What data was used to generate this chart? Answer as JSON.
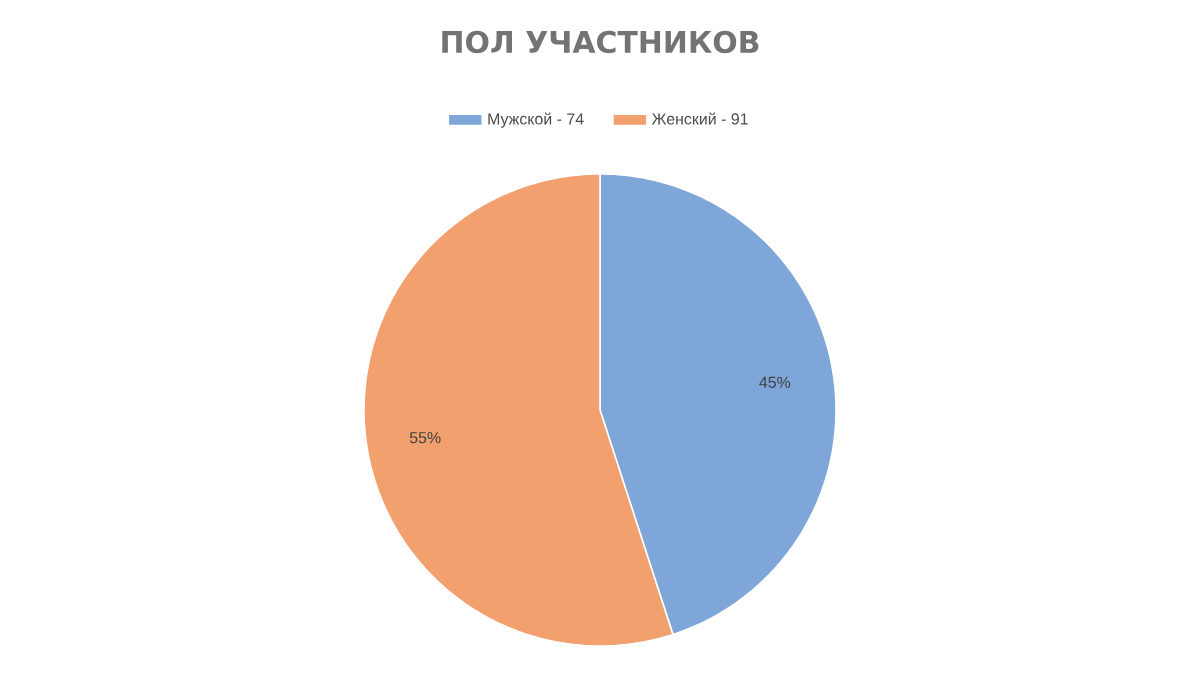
{
  "chart_data": {
    "type": "pie",
    "title": "ПОЛ УЧАСТНИКОВ",
    "categories": [
      "Мужской - 74",
      "Женский - 91"
    ],
    "values": [
      45,
      55
    ],
    "colors": [
      "#7ea6d8",
      "#f2a06e"
    ],
    "value_labels": [
      "45%",
      "55%"
    ],
    "legend": "top"
  }
}
